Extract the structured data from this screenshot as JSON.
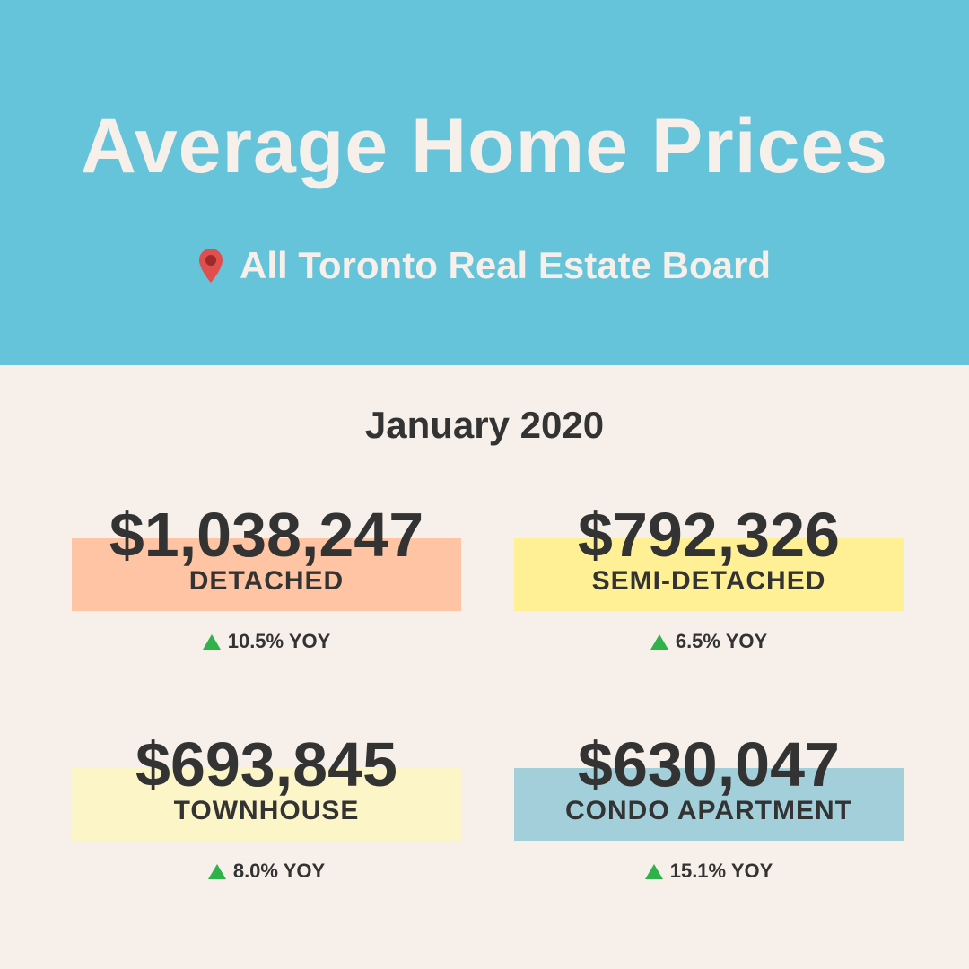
{
  "header": {
    "title": "Average Home Prices",
    "location": "All Toronto Real Estate Board",
    "location_icon": "map-pin-icon",
    "background_color": "#65c3da"
  },
  "period": "January 2020",
  "cards": [
    {
      "price": "$1,038,247",
      "type": "DETACHED",
      "yoy": "10.5% YOY",
      "trend_icon": "up-triangle-icon",
      "band_color": "#ffc4a3"
    },
    {
      "price": "$792,326",
      "type": "SEMI-DETACHED",
      "yoy": "6.5% YOY",
      "trend_icon": "up-triangle-icon",
      "band_color": "#fff096"
    },
    {
      "price": "$693,845",
      "type": "TOWNHOUSE",
      "yoy": "8.0% YOY",
      "trend_icon": "up-triangle-icon",
      "band_color": "#fcf5c8"
    },
    {
      "price": "$630,047",
      "type": "CONDO APARTMENT",
      "yoy": "15.1% YOY",
      "trend_icon": "up-triangle-icon",
      "band_color": "#a3cfda"
    }
  ],
  "colors": {
    "page_background": "#f6efea",
    "text_dark": "#333333",
    "text_light": "#f6efea",
    "trend_up": "#2fb24a",
    "pin": "#e04e4e"
  }
}
